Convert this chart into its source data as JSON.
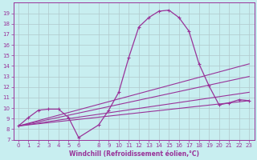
{
  "xlabel": "Windchill (Refroidissement éolien,°C)",
  "ylabel": "",
  "background_color": "#c8eef0",
  "line_color": "#993399",
  "grid_color": "#b0c8cc",
  "xlim": [
    -0.5,
    23.5
  ],
  "ylim": [
    7,
    20
  ],
  "yticks": [
    7,
    8,
    9,
    10,
    11,
    12,
    13,
    14,
    15,
    16,
    17,
    18,
    19
  ],
  "xticks": [
    0,
    1,
    2,
    3,
    4,
    5,
    6,
    8,
    9,
    10,
    11,
    12,
    13,
    14,
    15,
    16,
    17,
    18,
    19,
    20,
    21,
    22,
    23
  ],
  "main_series": {
    "x": [
      0,
      1,
      2,
      3,
      4,
      5,
      6,
      8,
      9,
      10,
      11,
      12,
      13,
      14,
      15,
      16,
      17,
      18,
      19,
      20,
      21,
      22,
      23
    ],
    "y": [
      8.3,
      9.1,
      9.8,
      9.9,
      9.9,
      9.1,
      7.2,
      8.4,
      9.8,
      11.5,
      14.8,
      17.7,
      18.6,
      19.2,
      19.3,
      18.6,
      17.3,
      14.2,
      12.1,
      10.3,
      10.5,
      10.8,
      10.7
    ]
  },
  "straight_lines": [
    {
      "x": [
        0,
        23
      ],
      "y": [
        8.3,
        10.7
      ]
    },
    {
      "x": [
        0,
        23
      ],
      "y": [
        8.3,
        11.5
      ]
    },
    {
      "x": [
        0,
        23
      ],
      "y": [
        8.3,
        13.0
      ]
    },
    {
      "x": [
        0,
        23
      ],
      "y": [
        8.3,
        14.2
      ]
    }
  ]
}
